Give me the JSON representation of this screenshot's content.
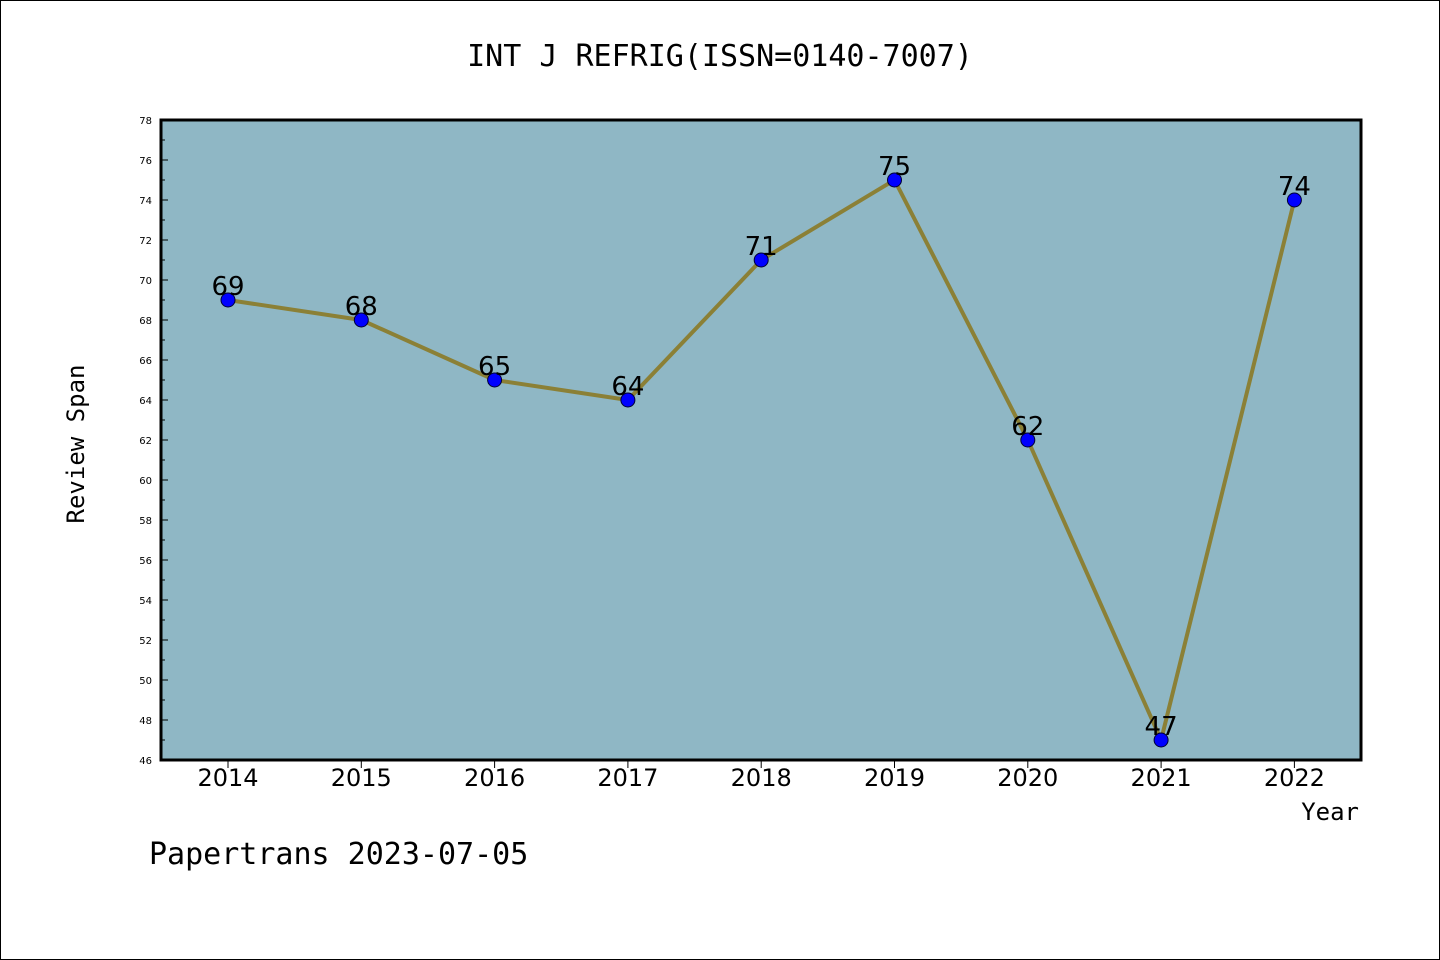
{
  "chart_data": {
    "type": "line",
    "title": "INT J REFRIG(ISSN=0140-7007)",
    "xlabel": "Year",
    "ylabel": "Review Span",
    "categories": [
      "2014",
      "2015",
      "2016",
      "2017",
      "2018",
      "2019",
      "2020",
      "2021",
      "2022"
    ],
    "series": [
      {
        "values": [
          69,
          68,
          65,
          64,
          71,
          75,
          62,
          47,
          74
        ]
      }
    ],
    "ylim": [
      46,
      78
    ],
    "y_ticks": [
      "46",
      "48",
      "50",
      "52",
      "54",
      "56",
      "58",
      "60",
      "62",
      "64",
      "66",
      "68",
      "70",
      "72",
      "74",
      "76",
      "78"
    ],
    "data_labels": [
      "69",
      "68",
      "65",
      "64",
      "71",
      "75",
      "62",
      "47",
      "74"
    ],
    "grid": false,
    "colors": {
      "plot_background": "#8fb7c5",
      "line": "#8b8036",
      "marker": "#0000ff"
    }
  },
  "footer": {
    "text": "Papertrans 2023-07-05"
  }
}
